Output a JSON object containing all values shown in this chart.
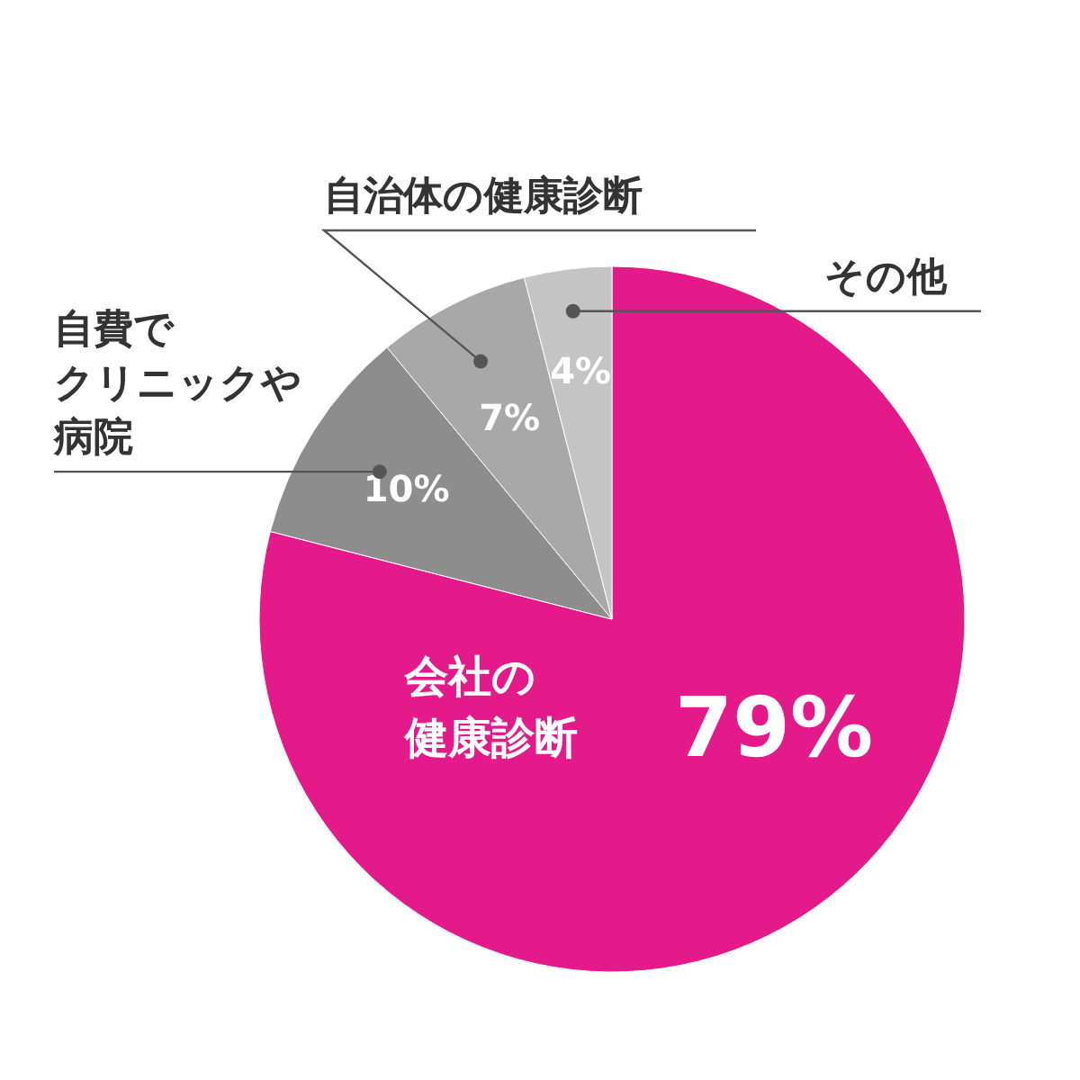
{
  "chart_data": {
    "type": "pie",
    "categories": [
      "会社の健康診断",
      "自費でクリニックや病院",
      "自治体の健康診断",
      "その他"
    ],
    "values": [
      79,
      10,
      7,
      4
    ],
    "colors": [
      "#e4198a",
      "#8d8d8d",
      "#a8a8a8",
      "#c4c4c4"
    ],
    "value_labels": [
      "79%",
      "10%",
      "7%",
      "4%"
    ]
  }
}
